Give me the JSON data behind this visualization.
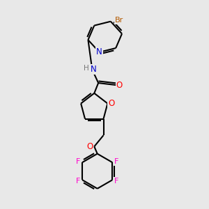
{
  "bg_color": "#e8e8e8",
  "bond_color": "#000000",
  "atom_colors": {
    "N": "#0000cc",
    "O": "#ff0000",
    "F": "#ff00cc",
    "Br": "#b35900",
    "H": "#777777",
    "C": "#000000"
  },
  "figsize": [
    3.0,
    3.0
  ],
  "dpi": 100
}
